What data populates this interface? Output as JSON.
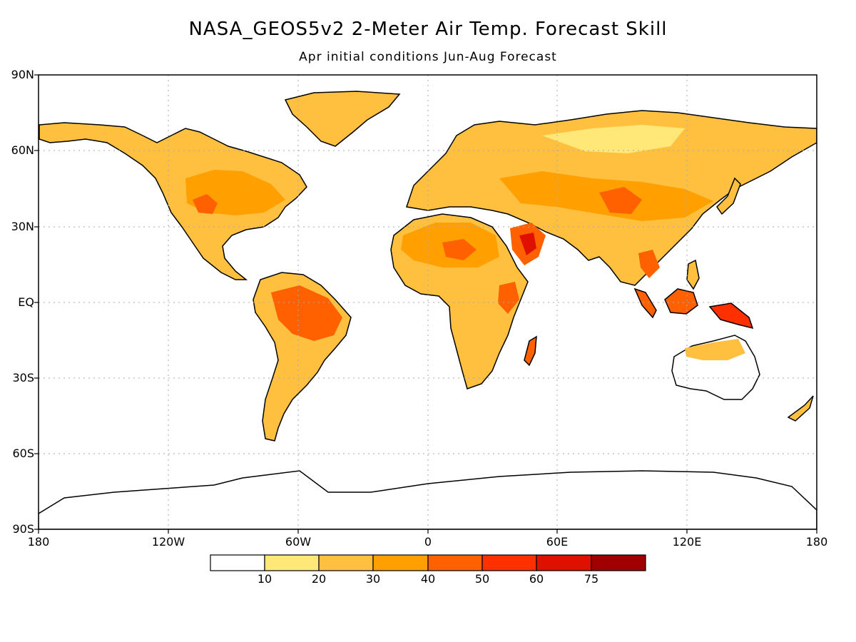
{
  "title": "NASA_GEOS5v2 2-Meter Air Temp. Forecast Skill",
  "subtitle": "Apr initial conditions  Jun-Aug Forecast",
  "lat_labels": [
    "90N",
    "60N",
    "30N",
    "EQ",
    "30S",
    "60S",
    "90S"
  ],
  "lon_labels": [
    "180",
    "120W",
    "60W",
    "0",
    "60E",
    "120E",
    "180"
  ],
  "colorbar": {
    "labels": [
      "10",
      "20",
      "30",
      "40",
      "50",
      "60",
      "75"
    ],
    "colors": [
      "#ffffff",
      "#ffe878",
      "#ffc040",
      "#ffa000",
      "#ff6000",
      "#ff3000",
      "#e01000",
      "#a00000"
    ]
  },
  "colors": {
    "ocean": "#ffffff",
    "coast": "#000000",
    "grid": "#aaaaaa"
  }
}
